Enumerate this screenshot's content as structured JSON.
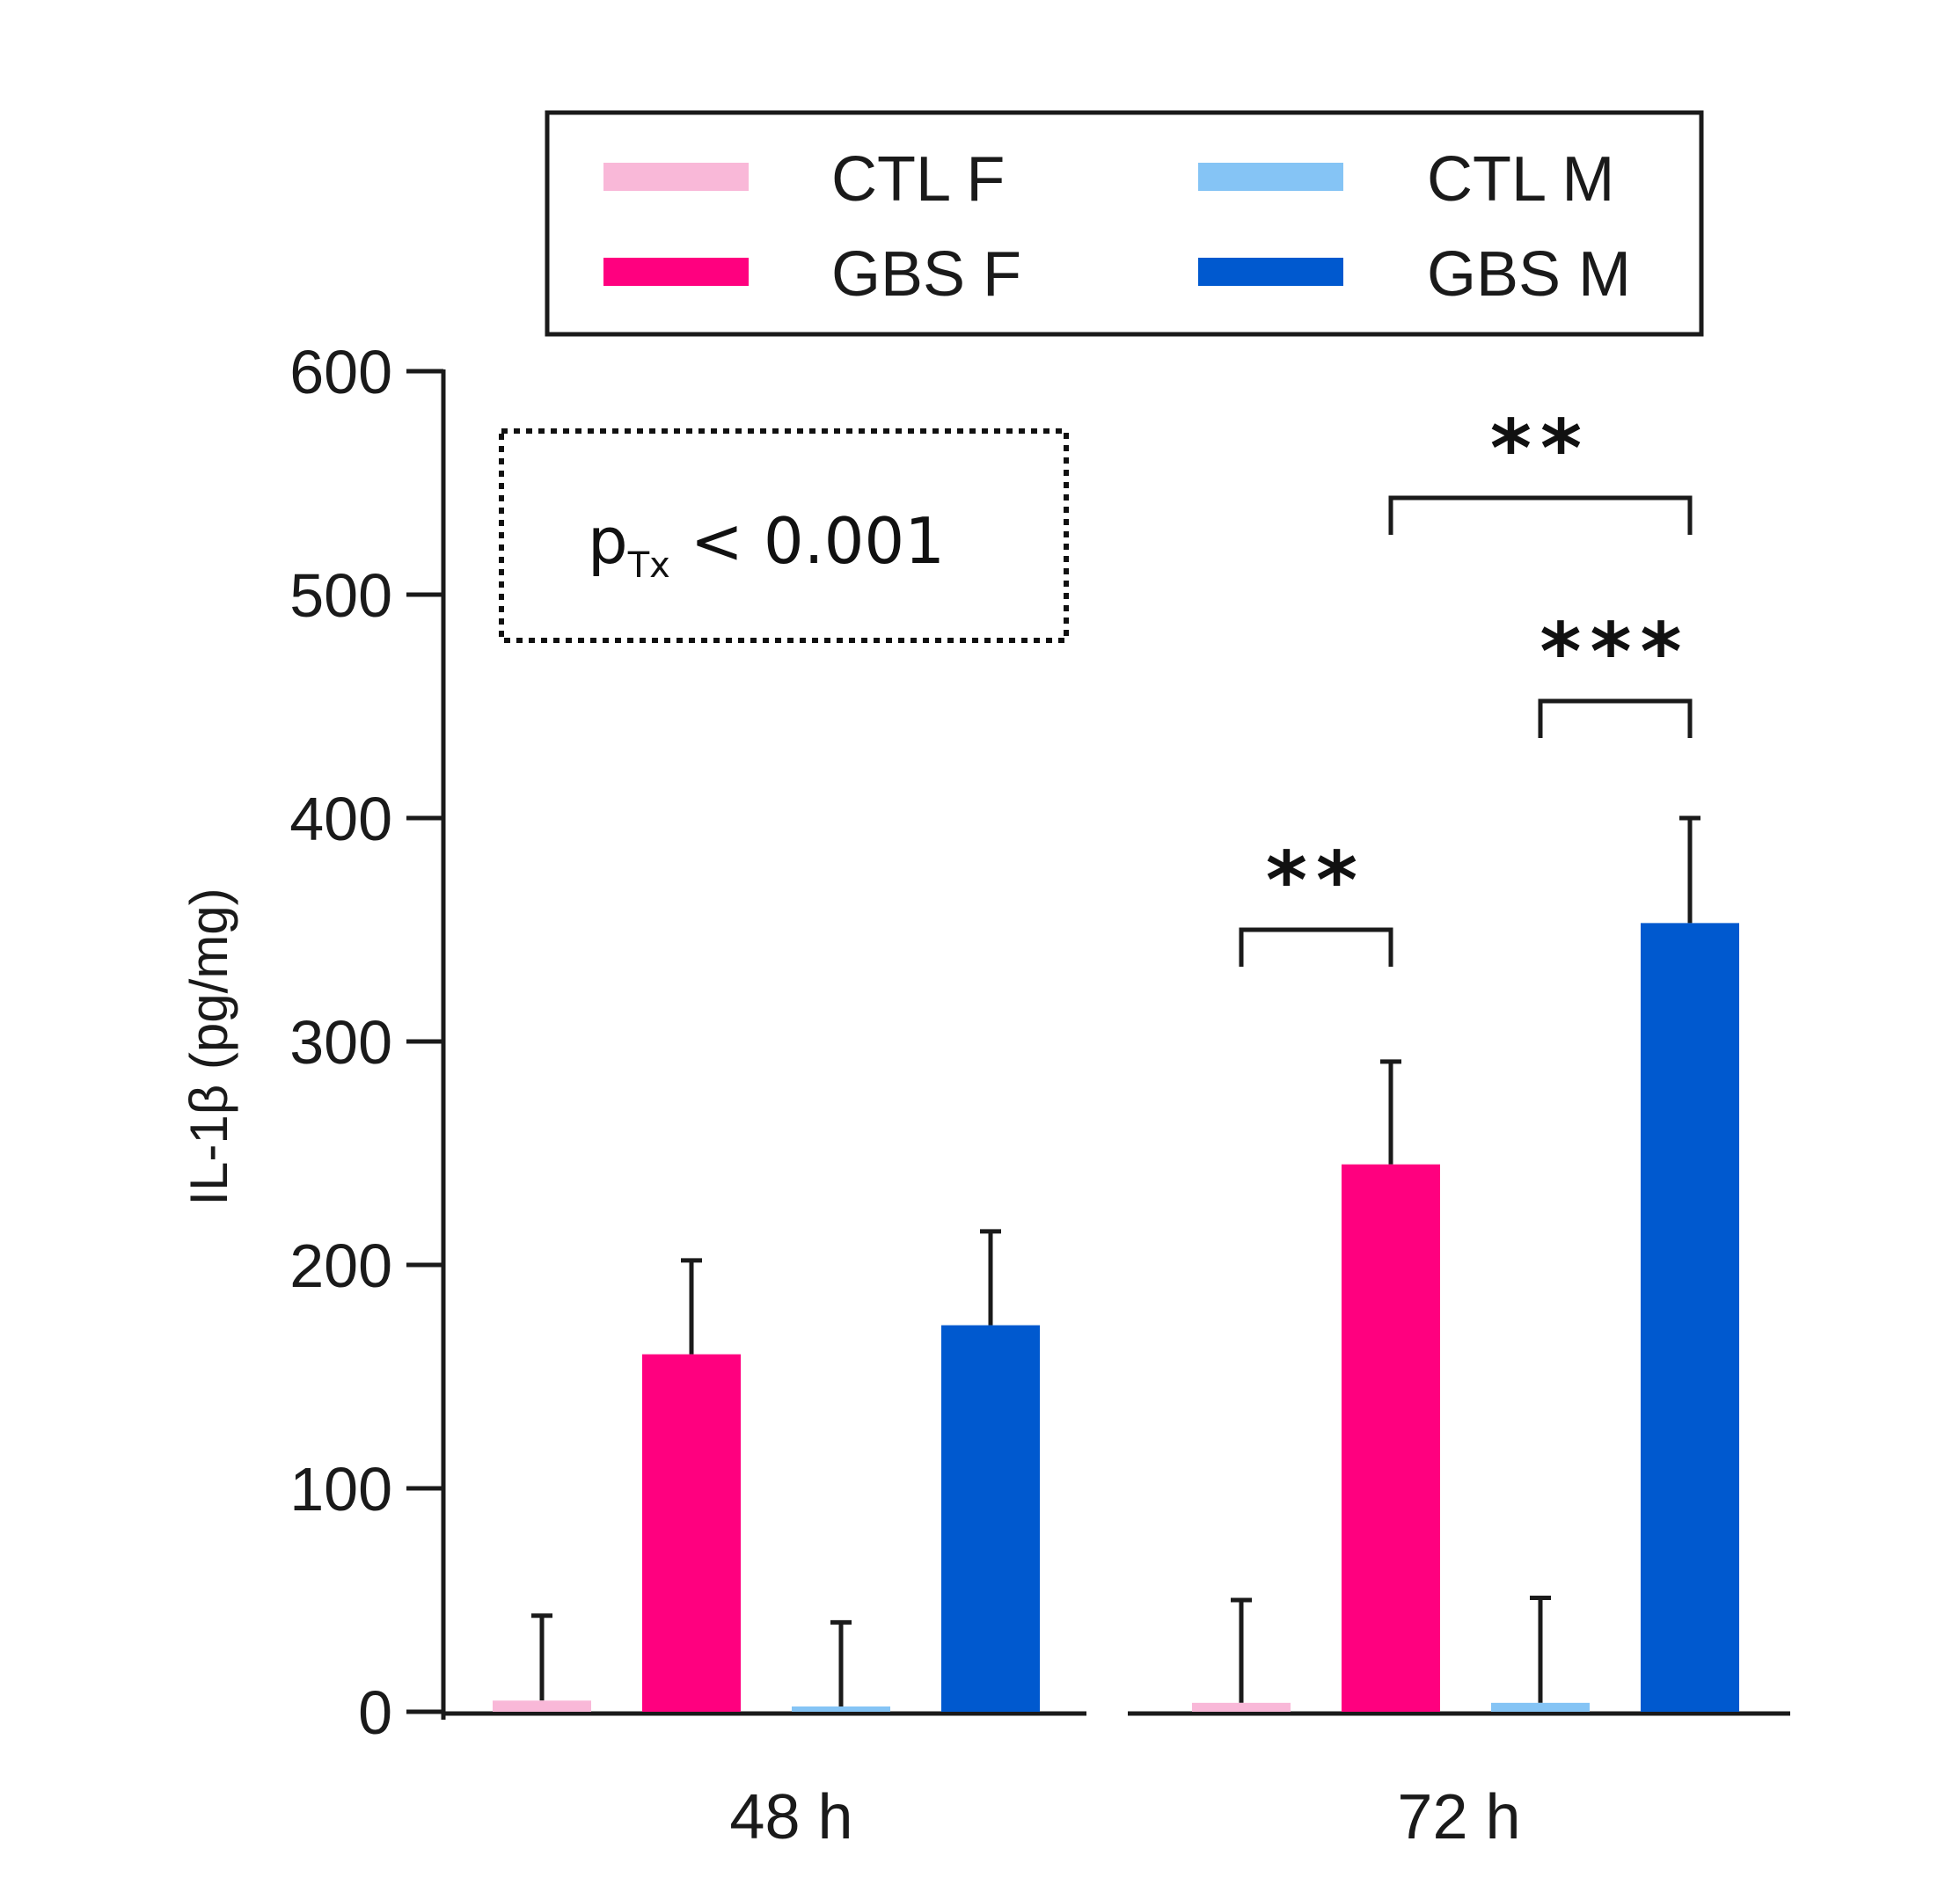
{
  "chart_data": {
    "type": "bar",
    "title": "",
    "ylabel": "IL-1β (pg/mg)",
    "xlabel": "",
    "ylim": [
      0,
      600
    ],
    "yticks": [
      0,
      100,
      200,
      300,
      400,
      500,
      600
    ],
    "categories": [
      "48 h",
      "72 h"
    ],
    "series": [
      {
        "name": "CTL F",
        "color": "#f9b8d8",
        "values": [
          5,
          4
        ],
        "errors": [
          38,
          46
        ]
      },
      {
        "name": "GBS F",
        "color": "#ff007f",
        "values": [
          160,
          245
        ],
        "errors": [
          42,
          46
        ]
      },
      {
        "name": "CTL M",
        "color": "#85c4f5",
        "values": [
          2,
          4
        ],
        "errors": [
          38,
          47
        ]
      },
      {
        "name": "GBS M",
        "color": "#0059cf",
        "values": [
          173,
          353
        ],
        "errors": [
          42,
          47
        ]
      }
    ],
    "significance": [
      {
        "category": "72 h",
        "from": "CTL F",
        "to": "GBS F",
        "label": "**"
      },
      {
        "category": "72 h",
        "from": "CTL M",
        "to": "GBS M",
        "label": "***"
      },
      {
        "category": "72 h",
        "from": "GBS F",
        "to": "GBS M",
        "label": "**"
      }
    ],
    "annotation": {
      "main": "p",
      "sub": "Tx",
      "rest": " < 0.001"
    },
    "legend": {
      "position": "top",
      "items": [
        "CTL F",
        "CTL M",
        "GBS F",
        "GBS M"
      ]
    }
  }
}
